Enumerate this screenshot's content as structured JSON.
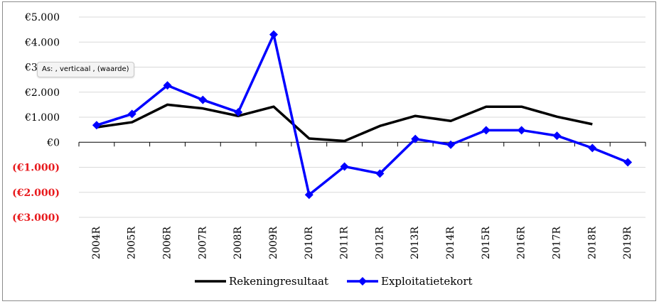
{
  "chart_data": {
    "type": "line",
    "title": "",
    "xlabel": "",
    "ylabel": "",
    "categories": [
      "2004R",
      "2005R",
      "2006R",
      "2007R",
      "2008R",
      "2009R",
      "2010R",
      "2011R",
      "2012R",
      "2013R",
      "2014R",
      "2015R",
      "2016R",
      "2017R",
      "2018R",
      "2019R"
    ],
    "ylim": [
      -3000,
      5000
    ],
    "y_ticks": [
      {
        "value": 5000,
        "label": "€5.000",
        "color": "#000000"
      },
      {
        "value": 4000,
        "label": "€4.000",
        "color": "#000000"
      },
      {
        "value": 3000,
        "label": "€3.000",
        "color": "#000000"
      },
      {
        "value": 2000,
        "label": "€2.000",
        "color": "#000000"
      },
      {
        "value": 1000,
        "label": "€1.000",
        "color": "#000000"
      },
      {
        "value": 0,
        "label": "€0",
        "color": "#000000"
      },
      {
        "value": -1000,
        "label": "(€1.000)",
        "color": "#e8191c"
      },
      {
        "value": -2000,
        "label": "(€2.000)",
        "color": "#e8191c"
      },
      {
        "value": -3000,
        "label": "(€3.000)",
        "color": "#e8191c"
      }
    ],
    "grid": true,
    "legend_position": "bottom",
    "series": [
      {
        "name": "Rekeningresultaat",
        "color": "#000000",
        "marker": "none",
        "values": [
          600,
          800,
          1500,
          1350,
          1050,
          1420,
          150,
          50,
          650,
          1050,
          850,
          1420,
          1420,
          1020,
          720,
          null
        ]
      },
      {
        "name": "Exploitatietekort",
        "color": "#0000ff",
        "marker": "diamond",
        "values": [
          680,
          1130,
          2270,
          1690,
          1200,
          4300,
          -2100,
          -970,
          -1250,
          130,
          -100,
          480,
          480,
          260,
          -230,
          -800
        ]
      }
    ]
  },
  "tooltip": {
    "text": "As: , verticaal , (waarde)"
  }
}
